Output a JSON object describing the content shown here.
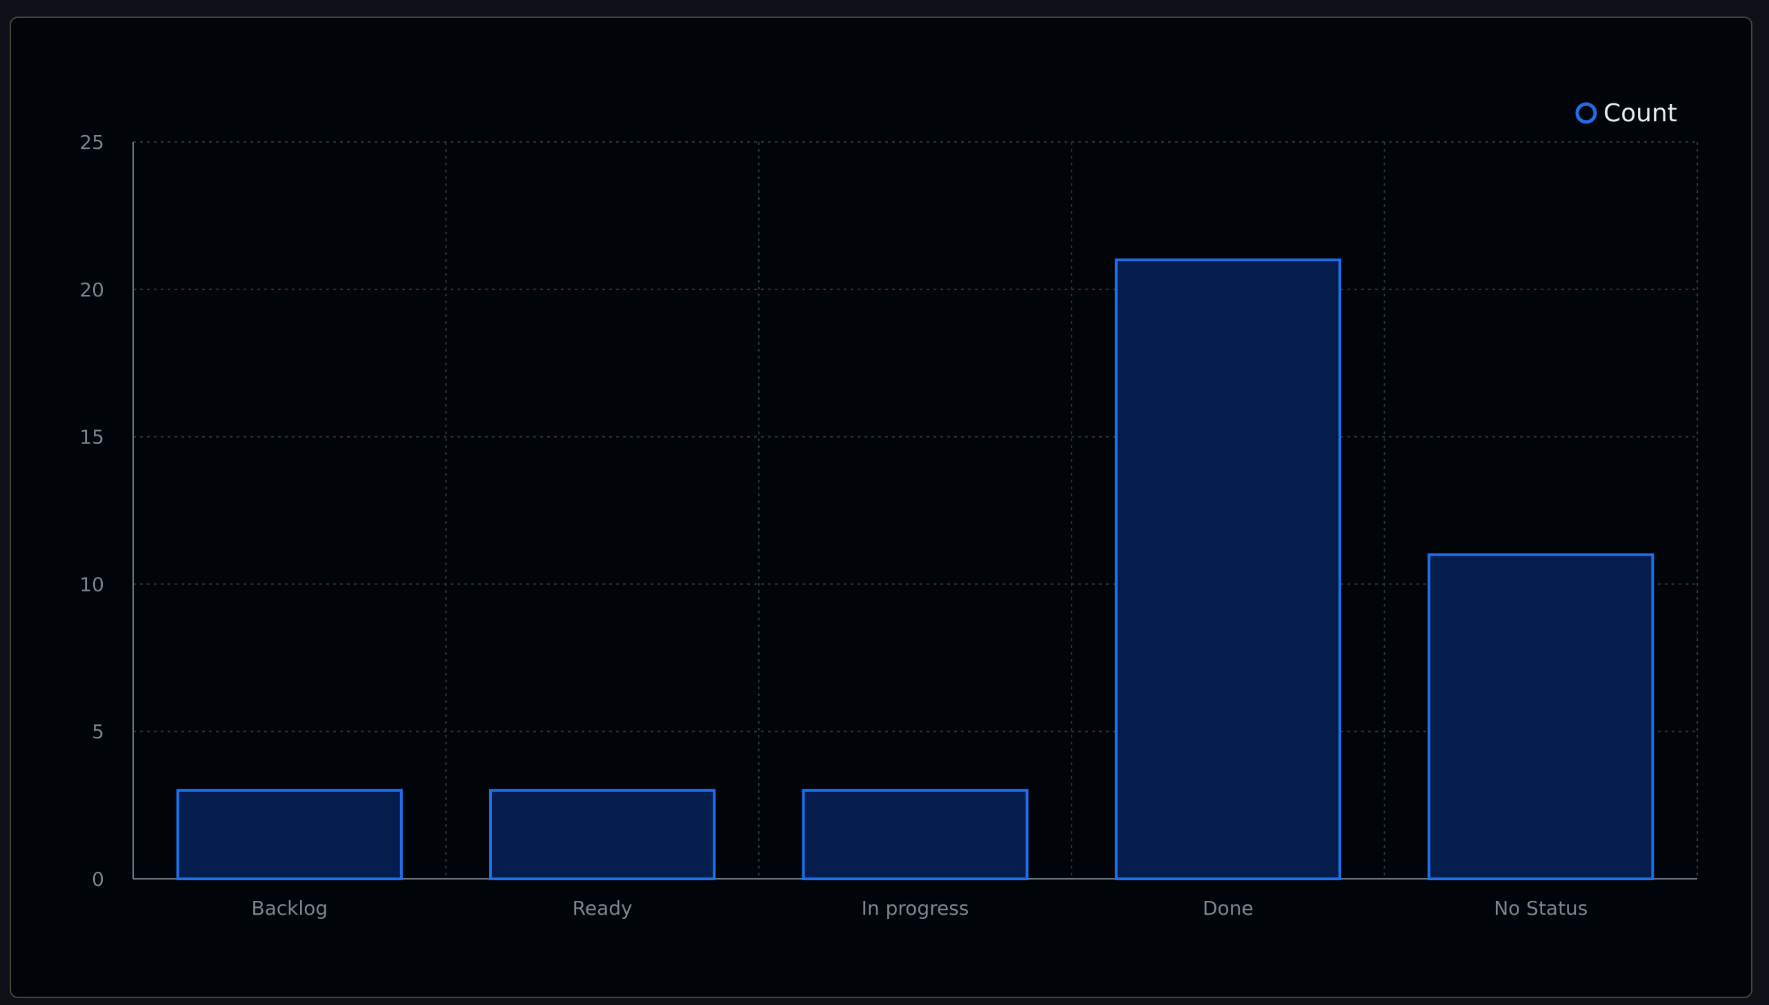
{
  "chart_data": {
    "type": "bar",
    "categories": [
      "Backlog",
      "Ready",
      "In progress",
      "Done",
      "No Status"
    ],
    "series": [
      {
        "name": "Count",
        "values": [
          3,
          3,
          3,
          21,
          11
        ]
      }
    ],
    "title": "",
    "xlabel": "",
    "ylabel": "",
    "ylim": [
      0,
      25
    ],
    "yticks": [
      "0",
      "5",
      "10",
      "15",
      "20",
      "25"
    ],
    "grid": true,
    "legend_position": "top-right",
    "colors": {
      "bar_fill": "#051d4d",
      "bar_stroke": "#1f6feb",
      "grid": "#30363d",
      "axis": "#6e7681"
    }
  }
}
